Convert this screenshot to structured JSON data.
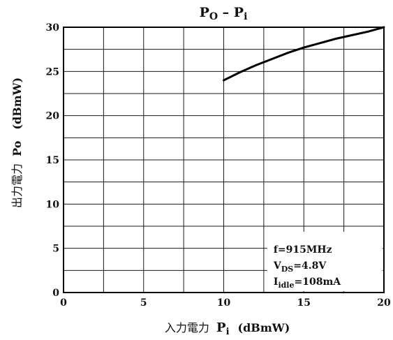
{
  "chart_data": {
    "type": "line",
    "title": {
      "main": "P",
      "main_sub": "O",
      "sep": " – ",
      "second": "P",
      "second_sub": "i"
    },
    "xlabel": {
      "prefix": "入力電力  ",
      "sym": "P",
      "sym_sub": "i",
      "unit": "(dBmW)"
    },
    "ylabel": {
      "prefix": "出力電力  ",
      "sym": "Po",
      "unit": "(dBmW)"
    },
    "xlim": [
      0,
      20
    ],
    "ylim": [
      0,
      30
    ],
    "x_ticks": [
      0,
      5,
      10,
      15,
      20
    ],
    "y_ticks": [
      0,
      5,
      10,
      15,
      20,
      25,
      30
    ],
    "grid": true,
    "series": [
      {
        "x": [
          10,
          11,
          12,
          13,
          14,
          15,
          16,
          17,
          18,
          19,
          20
        ],
        "y": [
          24.0,
          24.9,
          25.7,
          26.4,
          27.1,
          27.7,
          28.2,
          28.7,
          29.1,
          29.5,
          30.0
        ]
      }
    ],
    "conditions": [
      {
        "main": "f",
        "sub": "",
        "rest": "=915MHz"
      },
      {
        "main": "V",
        "sub": "DS",
        "rest": "=4.8V"
      },
      {
        "main": "I",
        "sub": "idle",
        "rest": "=108mA"
      }
    ]
  }
}
